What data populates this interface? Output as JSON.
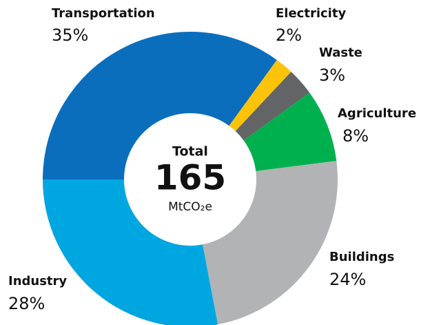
{
  "chart_data": {
    "type": "donut",
    "categories": [
      "Transportation",
      "Electricity",
      "Waste",
      "Agriculture",
      "Buildings",
      "Industry"
    ],
    "values": [
      35,
      2,
      3,
      8,
      24,
      28
    ],
    "value_labels": [
      "35%",
      "2%",
      "3%",
      "8%",
      "24%",
      "28%"
    ],
    "colors": [
      "#0a6ebd",
      "#fcc30b",
      "#636466",
      "#00b04f",
      "#b1b3b4",
      "#00a6e0"
    ],
    "center": {
      "label": "Total",
      "value": 165,
      "unit": "MtCO₂e"
    }
  }
}
